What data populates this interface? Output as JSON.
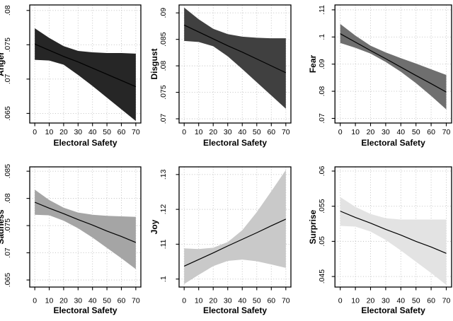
{
  "figure": {
    "background": "#ffffff",
    "line_color": "#000000",
    "grid_color": "#bdbdbd",
    "axis_color": "#000000",
    "grid_style": "dotted",
    "layout": "2x3 panel grid of fitted-line plots with confidence bands",
    "shared_xlabel": "Electoral Safety",
    "shared_x_tick_labels": [
      "0",
      "10",
      "20",
      "30",
      "40",
      "50",
      "60",
      "70"
    ]
  },
  "chart_data": [
    {
      "type": "area",
      "title": "Anger",
      "ylabel": "Anger",
      "xlabel": "Electoral Safety",
      "band_color": "#262626",
      "grid": true,
      "legend": false,
      "x": [
        0,
        10,
        20,
        30,
        40,
        50,
        60,
        70
      ],
      "xtick_values": [
        0,
        10,
        20,
        30,
        40,
        50,
        60,
        70
      ],
      "xtick_labels": [
        "0",
        "10",
        "20",
        "30",
        "40",
        "50",
        "60",
        "70"
      ],
      "xlim": [
        -3.5,
        73.5
      ],
      "ylim": [
        0.0636,
        0.0808
      ],
      "ytick_values": [
        0.065,
        0.07,
        0.075,
        0.08
      ],
      "ytick_labels": [
        ".065",
        ".07",
        ".075",
        ".08"
      ],
      "series": [
        {
          "name": "fit",
          "values": [
            0.0751,
            0.0742,
            0.0733,
            0.0725,
            0.0716,
            0.0707,
            0.0698,
            0.0689
          ]
        },
        {
          "name": "ci_upper",
          "values": [
            0.0774,
            0.076,
            0.0748,
            0.0741,
            0.0739,
            0.0738,
            0.0738,
            0.0737
          ]
        },
        {
          "name": "ci_lower",
          "values": [
            0.0728,
            0.0727,
            0.0721,
            0.0706,
            0.069,
            0.0673,
            0.0656,
            0.0639
          ]
        }
      ]
    },
    {
      "type": "area",
      "title": "Disgust",
      "ylabel": "Disgust",
      "xlabel": "Electoral Safety",
      "band_color": "#404040",
      "grid": true,
      "legend": false,
      "x": [
        0,
        10,
        20,
        30,
        40,
        50,
        60,
        70
      ],
      "xtick_values": [
        0,
        10,
        20,
        30,
        40,
        50,
        60,
        70
      ],
      "xtick_labels": [
        "0",
        "10",
        "20",
        "30",
        "40",
        "50",
        "60",
        "70"
      ],
      "xlim": [
        -3.5,
        73.5
      ],
      "ylim": [
        0.0692,
        0.0915
      ],
      "ytick_values": [
        0.07,
        0.075,
        0.08,
        0.085,
        0.09
      ],
      "ytick_labels": [
        ".07",
        ".075",
        ".08",
        ".085",
        ".09"
      ],
      "series": [
        {
          "name": "fit",
          "values": [
            0.0877,
            0.0864,
            0.0851,
            0.0838,
            0.0826,
            0.0813,
            0.08,
            0.0787
          ]
        },
        {
          "name": "ci_upper",
          "values": [
            0.091,
            0.0888,
            0.087,
            0.086,
            0.0855,
            0.0853,
            0.0852,
            0.0852
          ]
        },
        {
          "name": "ci_lower",
          "values": [
            0.0847,
            0.0845,
            0.0837,
            0.0818,
            0.0794,
            0.0769,
            0.0744,
            0.0719
          ]
        }
      ]
    },
    {
      "type": "area",
      "title": "Fear",
      "ylabel": "Fear",
      "xlabel": "Electoral Safety",
      "band_color": "#6f6f6f",
      "grid": true,
      "legend": false,
      "x": [
        0,
        10,
        20,
        30,
        40,
        50,
        60,
        70
      ],
      "xtick_values": [
        0,
        10,
        20,
        30,
        40,
        50,
        60,
        70
      ],
      "xtick_labels": [
        "0",
        "10",
        "20",
        "30",
        "40",
        "50",
        "60",
        "70"
      ],
      "xlim": [
        -3.5,
        73.5
      ],
      "ylim": [
        0.0683,
        0.1118
      ],
      "ytick_values": [
        0.07,
        0.08,
        0.09,
        0.1,
        0.11
      ],
      "ytick_labels": [
        ".07",
        ".08",
        ".09",
        ".1",
        ".11"
      ],
      "series": [
        {
          "name": "fit",
          "values": [
            0.1012,
            0.0981,
            0.095,
            0.092,
            0.0889,
            0.0858,
            0.0828,
            0.0797
          ]
        },
        {
          "name": "ci_upper",
          "values": [
            0.1048,
            0.1005,
            0.0968,
            0.0943,
            0.0922,
            0.0902,
            0.0881,
            0.086
          ]
        },
        {
          "name": "ci_lower",
          "values": [
            0.0978,
            0.096,
            0.0939,
            0.0908,
            0.0872,
            0.083,
            0.0783,
            0.0733
          ]
        }
      ]
    },
    {
      "type": "area",
      "title": "Sadness",
      "ylabel": "Sadness",
      "xlabel": "Electoral Safety",
      "band_color": "#a5a5a5",
      "grid": true,
      "legend": false,
      "x": [
        0,
        10,
        20,
        30,
        40,
        50,
        60,
        70
      ],
      "xtick_values": [
        0,
        10,
        20,
        30,
        40,
        50,
        60,
        70
      ],
      "xtick_labels": [
        "0",
        "10",
        "20",
        "30",
        "40",
        "50",
        "60",
        "70"
      ],
      "xlim": [
        -3.5,
        73.5
      ],
      "ylim": [
        0.0637,
        0.0858
      ],
      "ytick_values": [
        0.065,
        0.07,
        0.075,
        0.08,
        0.085
      ],
      "ytick_labels": [
        ".065",
        ".07",
        ".075",
        ".08",
        ".085"
      ],
      "series": [
        {
          "name": "fit",
          "values": [
            0.0793,
            0.0782,
            0.0772,
            0.0761,
            0.0751,
            0.074,
            0.073,
            0.0719
          ]
        },
        {
          "name": "ci_upper",
          "values": [
            0.0816,
            0.0797,
            0.0783,
            0.0774,
            0.077,
            0.0768,
            0.0767,
            0.0766
          ]
        },
        {
          "name": "ci_lower",
          "values": [
            0.077,
            0.0769,
            0.0759,
            0.0745,
            0.0728,
            0.0709,
            0.069,
            0.067
          ]
        }
      ]
    },
    {
      "type": "area",
      "title": "Joy",
      "ylabel": "Joy",
      "xlabel": "Electoral Safety",
      "band_color": "#c9c9c9",
      "grid": true,
      "legend": false,
      "x": [
        0,
        10,
        20,
        30,
        40,
        50,
        60,
        70
      ],
      "xtick_values": [
        0,
        10,
        20,
        30,
        40,
        50,
        60,
        70
      ],
      "xtick_labels": [
        "0",
        "10",
        "20",
        "30",
        "40",
        "50",
        "60",
        "70"
      ],
      "xlim": [
        -3.5,
        73.5
      ],
      "ylim": [
        0.0977,
        0.1322
      ],
      "ytick_values": [
        0.1,
        0.11,
        0.12,
        0.13
      ],
      "ytick_labels": [
        ".1",
        ".11",
        ".12",
        ".13"
      ],
      "series": [
        {
          "name": "fit",
          "values": [
            0.1037,
            0.1056,
            0.1075,
            0.1095,
            0.1114,
            0.1133,
            0.1153,
            0.1172
          ]
        },
        {
          "name": "ci_upper",
          "values": [
            0.1088,
            0.1086,
            0.109,
            0.1106,
            0.114,
            0.1192,
            0.1252,
            0.1313
          ]
        },
        {
          "name": "ci_lower",
          "values": [
            0.0986,
            0.1012,
            0.1037,
            0.1052,
            0.1056,
            0.1051,
            0.1042,
            0.1032
          ]
        }
      ]
    },
    {
      "type": "area",
      "title": "Surprise",
      "ylabel": "Surprise",
      "xlabel": "Electoral Safety",
      "band_color": "#e3e3e3",
      "grid": true,
      "legend": false,
      "x": [
        0,
        10,
        20,
        30,
        40,
        50,
        60,
        70
      ],
      "xtick_values": [
        0,
        10,
        20,
        30,
        40,
        50,
        60,
        70
      ],
      "xtick_labels": [
        "0",
        "10",
        "20",
        "30",
        "40",
        "50",
        "60",
        "70"
      ],
      "xlim": [
        -3.5,
        73.5
      ],
      "ylim": [
        0.0435,
        0.0606
      ],
      "ytick_values": [
        0.045,
        0.05,
        0.055,
        0.06
      ],
      "ytick_labels": [
        ".045",
        ".05",
        ".055",
        ".06"
      ],
      "series": [
        {
          "name": "fit",
          "values": [
            0.0543,
            0.0534,
            0.0526,
            0.0517,
            0.0509,
            0.05,
            0.0492,
            0.0483
          ]
        },
        {
          "name": "ci_upper",
          "values": [
            0.0563,
            0.0549,
            0.0539,
            0.0533,
            0.0531,
            0.0531,
            0.0531,
            0.0531
          ]
        },
        {
          "name": "ci_lower",
          "values": [
            0.0522,
            0.0521,
            0.0514,
            0.0502,
            0.0487,
            0.0471,
            0.0455,
            0.0438
          ]
        }
      ]
    }
  ]
}
